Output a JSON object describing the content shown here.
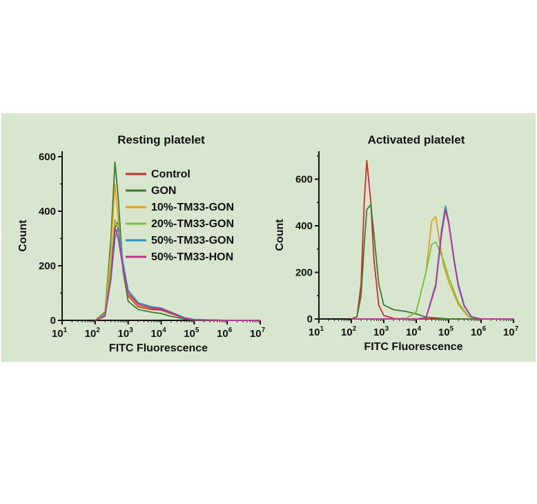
{
  "background_color": "#d8e6d0",
  "chart_data": [
    {
      "type": "line",
      "title": "Resting platelet",
      "xlabel": "FITC Fluorescence",
      "ylabel": "Count",
      "xscale": "log",
      "xlim": [
        10,
        10000000
      ],
      "ylim": [
        0,
        620
      ],
      "x_tick_labels": [
        "10",
        "2",
        "10",
        "3",
        "10",
        "4",
        "10",
        "5",
        "10",
        "6",
        "10",
        "7",
        "10",
        "1"
      ],
      "x_ticks": [
        {
          "base": "10",
          "exp": "1"
        },
        {
          "base": "10",
          "exp": "2"
        },
        {
          "base": "10",
          "exp": "3"
        },
        {
          "base": "10",
          "exp": "4"
        },
        {
          "base": "10",
          "exp": "5"
        },
        {
          "base": "10",
          "exp": "6"
        },
        {
          "base": "10",
          "exp": "7"
        }
      ],
      "y_ticks": [
        "0",
        "200",
        "400",
        "600"
      ],
      "y_tick_values": [
        0,
        200,
        400,
        600
      ],
      "legend_placement": "upper-right of peak",
      "series": [
        {
          "name": "Control",
          "color": "#cc2b2b",
          "x": [
            100,
            200,
            300,
            400,
            500,
            700,
            1000,
            2000,
            5000,
            10000,
            20000,
            50000,
            100000,
            1000000,
            10000000
          ],
          "y": [
            0,
            20,
            150,
            340,
            360,
            200,
            90,
            50,
            40,
            38,
            25,
            8,
            2,
            0,
            0
          ]
        },
        {
          "name": "GON",
          "color": "#3d7a2e",
          "x": [
            100,
            200,
            300,
            400,
            500,
            700,
            1000,
            2000,
            5000,
            10000,
            20000,
            50000,
            100000,
            1000000,
            10000000
          ],
          "y": [
            0,
            30,
            300,
            580,
            450,
            180,
            70,
            40,
            30,
            25,
            15,
            5,
            1,
            0,
            0
          ]
        },
        {
          "name": "10%-TM33-GON",
          "color": "#e0a020",
          "x": [
            100,
            200,
            300,
            400,
            500,
            700,
            1000,
            2000,
            5000,
            10000,
            20000,
            50000,
            100000,
            1000000,
            10000000
          ],
          "y": [
            0,
            25,
            260,
            500,
            370,
            190,
            95,
            55,
            45,
            42,
            28,
            8,
            2,
            0,
            0
          ]
        },
        {
          "name": "20%-TM33-GON",
          "color": "#78c040",
          "x": [
            100,
            200,
            300,
            400,
            500,
            700,
            1000,
            2000,
            5000,
            10000,
            20000,
            50000,
            100000,
            1000000,
            10000000
          ],
          "y": [
            0,
            22,
            200,
            370,
            330,
            190,
            100,
            60,
            48,
            44,
            30,
            9,
            2,
            0,
            0
          ]
        },
        {
          "name": "50%-TM33-GON",
          "color": "#2a8fc0",
          "x": [
            100,
            200,
            300,
            400,
            500,
            700,
            1000,
            2000,
            5000,
            10000,
            20000,
            50000,
            100000,
            1000000,
            10000000
          ],
          "y": [
            0,
            18,
            150,
            300,
            340,
            210,
            110,
            65,
            50,
            45,
            30,
            10,
            3,
            0,
            0
          ]
        },
        {
          "name": "50%-TM33-HON",
          "color": "#c03090",
          "x": [
            100,
            200,
            300,
            400,
            500,
            700,
            1000,
            2000,
            5000,
            10000,
            20000,
            50000,
            100000,
            1000000,
            10000000
          ],
          "y": [
            0,
            15,
            160,
            340,
            300,
            190,
            100,
            60,
            45,
            42,
            28,
            8,
            2,
            0,
            0
          ]
        }
      ]
    },
    {
      "type": "line",
      "title": "Activated platelet",
      "xlabel": "FITC Fluorescence",
      "ylabel": "Count",
      "xscale": "log",
      "xlim": [
        10,
        10000000
      ],
      "ylim": [
        0,
        720
      ],
      "x_tick_labels": [
        "10",
        "2",
        "10",
        "3",
        "10",
        "4",
        "10",
        "5",
        "10",
        "6",
        "10",
        "7",
        "10",
        "1"
      ],
      "x_ticks": [
        {
          "base": "10",
          "exp": "1"
        },
        {
          "base": "10",
          "exp": "2"
        },
        {
          "base": "10",
          "exp": "3"
        },
        {
          "base": "10",
          "exp": "4"
        },
        {
          "base": "10",
          "exp": "5"
        },
        {
          "base": "10",
          "exp": "6"
        },
        {
          "base": "10",
          "exp": "7"
        }
      ],
      "y_ticks": [
        "0",
        "200",
        "400",
        "600"
      ],
      "y_tick_values": [
        0,
        200,
        400,
        600
      ],
      "series": [
        {
          "name": "Control",
          "color": "#cc2b2b",
          "x": [
            100,
            150,
            200,
            250,
            300,
            400,
            500,
            700,
            1000,
            2000,
            5000,
            10000,
            100000,
            10000000
          ],
          "y": [
            0,
            10,
            150,
            500,
            680,
            500,
            250,
            60,
            15,
            3,
            0,
            0,
            0,
            0
          ]
        },
        {
          "name": "GON",
          "color": "#3d7a2e",
          "x": [
            100,
            150,
            200,
            250,
            300,
            400,
            500,
            700,
            1000,
            2000,
            5000,
            10000,
            20000,
            100000,
            10000000
          ],
          "y": [
            0,
            10,
            100,
            320,
            470,
            490,
            360,
            150,
            60,
            40,
            32,
            22,
            8,
            0,
            0
          ]
        },
        {
          "name": "10%-TM33-GON",
          "color": "#e0a020",
          "x": [
            100,
            1000,
            5000,
            10000,
            20000,
            30000,
            40000,
            50000,
            70000,
            100000,
            200000,
            400000,
            1000000,
            10000000
          ],
          "y": [
            0,
            0,
            3,
            30,
            200,
            420,
            440,
            350,
            230,
            160,
            60,
            10,
            0,
            0
          ]
        },
        {
          "name": "20%-TM33-GON",
          "color": "#78c040",
          "x": [
            100,
            1000,
            5000,
            10000,
            20000,
            30000,
            40000,
            50000,
            70000,
            100000,
            200000,
            400000,
            1000000,
            10000000
          ],
          "y": [
            0,
            0,
            3,
            30,
            200,
            320,
            330,
            300,
            250,
            180,
            70,
            12,
            0,
            0
          ]
        },
        {
          "name": "50%-TM33-GON",
          "color": "#2a8fc0",
          "x": [
            100,
            1000,
            10000,
            20000,
            40000,
            60000,
            80000,
            100000,
            150000,
            200000,
            300000,
            500000,
            1000000,
            10000000
          ],
          "y": [
            0,
            0,
            0,
            5,
            150,
            380,
            485,
            420,
            250,
            150,
            60,
            10,
            0,
            0
          ]
        },
        {
          "name": "50%-TM33-HON",
          "color": "#c03090",
          "x": [
            100,
            1000,
            10000,
            20000,
            40000,
            60000,
            80000,
            100000,
            150000,
            200000,
            300000,
            500000,
            1000000,
            10000000
          ],
          "y": [
            0,
            0,
            0,
            4,
            140,
            360,
            470,
            410,
            240,
            140,
            55,
            8,
            0,
            0
          ]
        }
      ]
    }
  ]
}
